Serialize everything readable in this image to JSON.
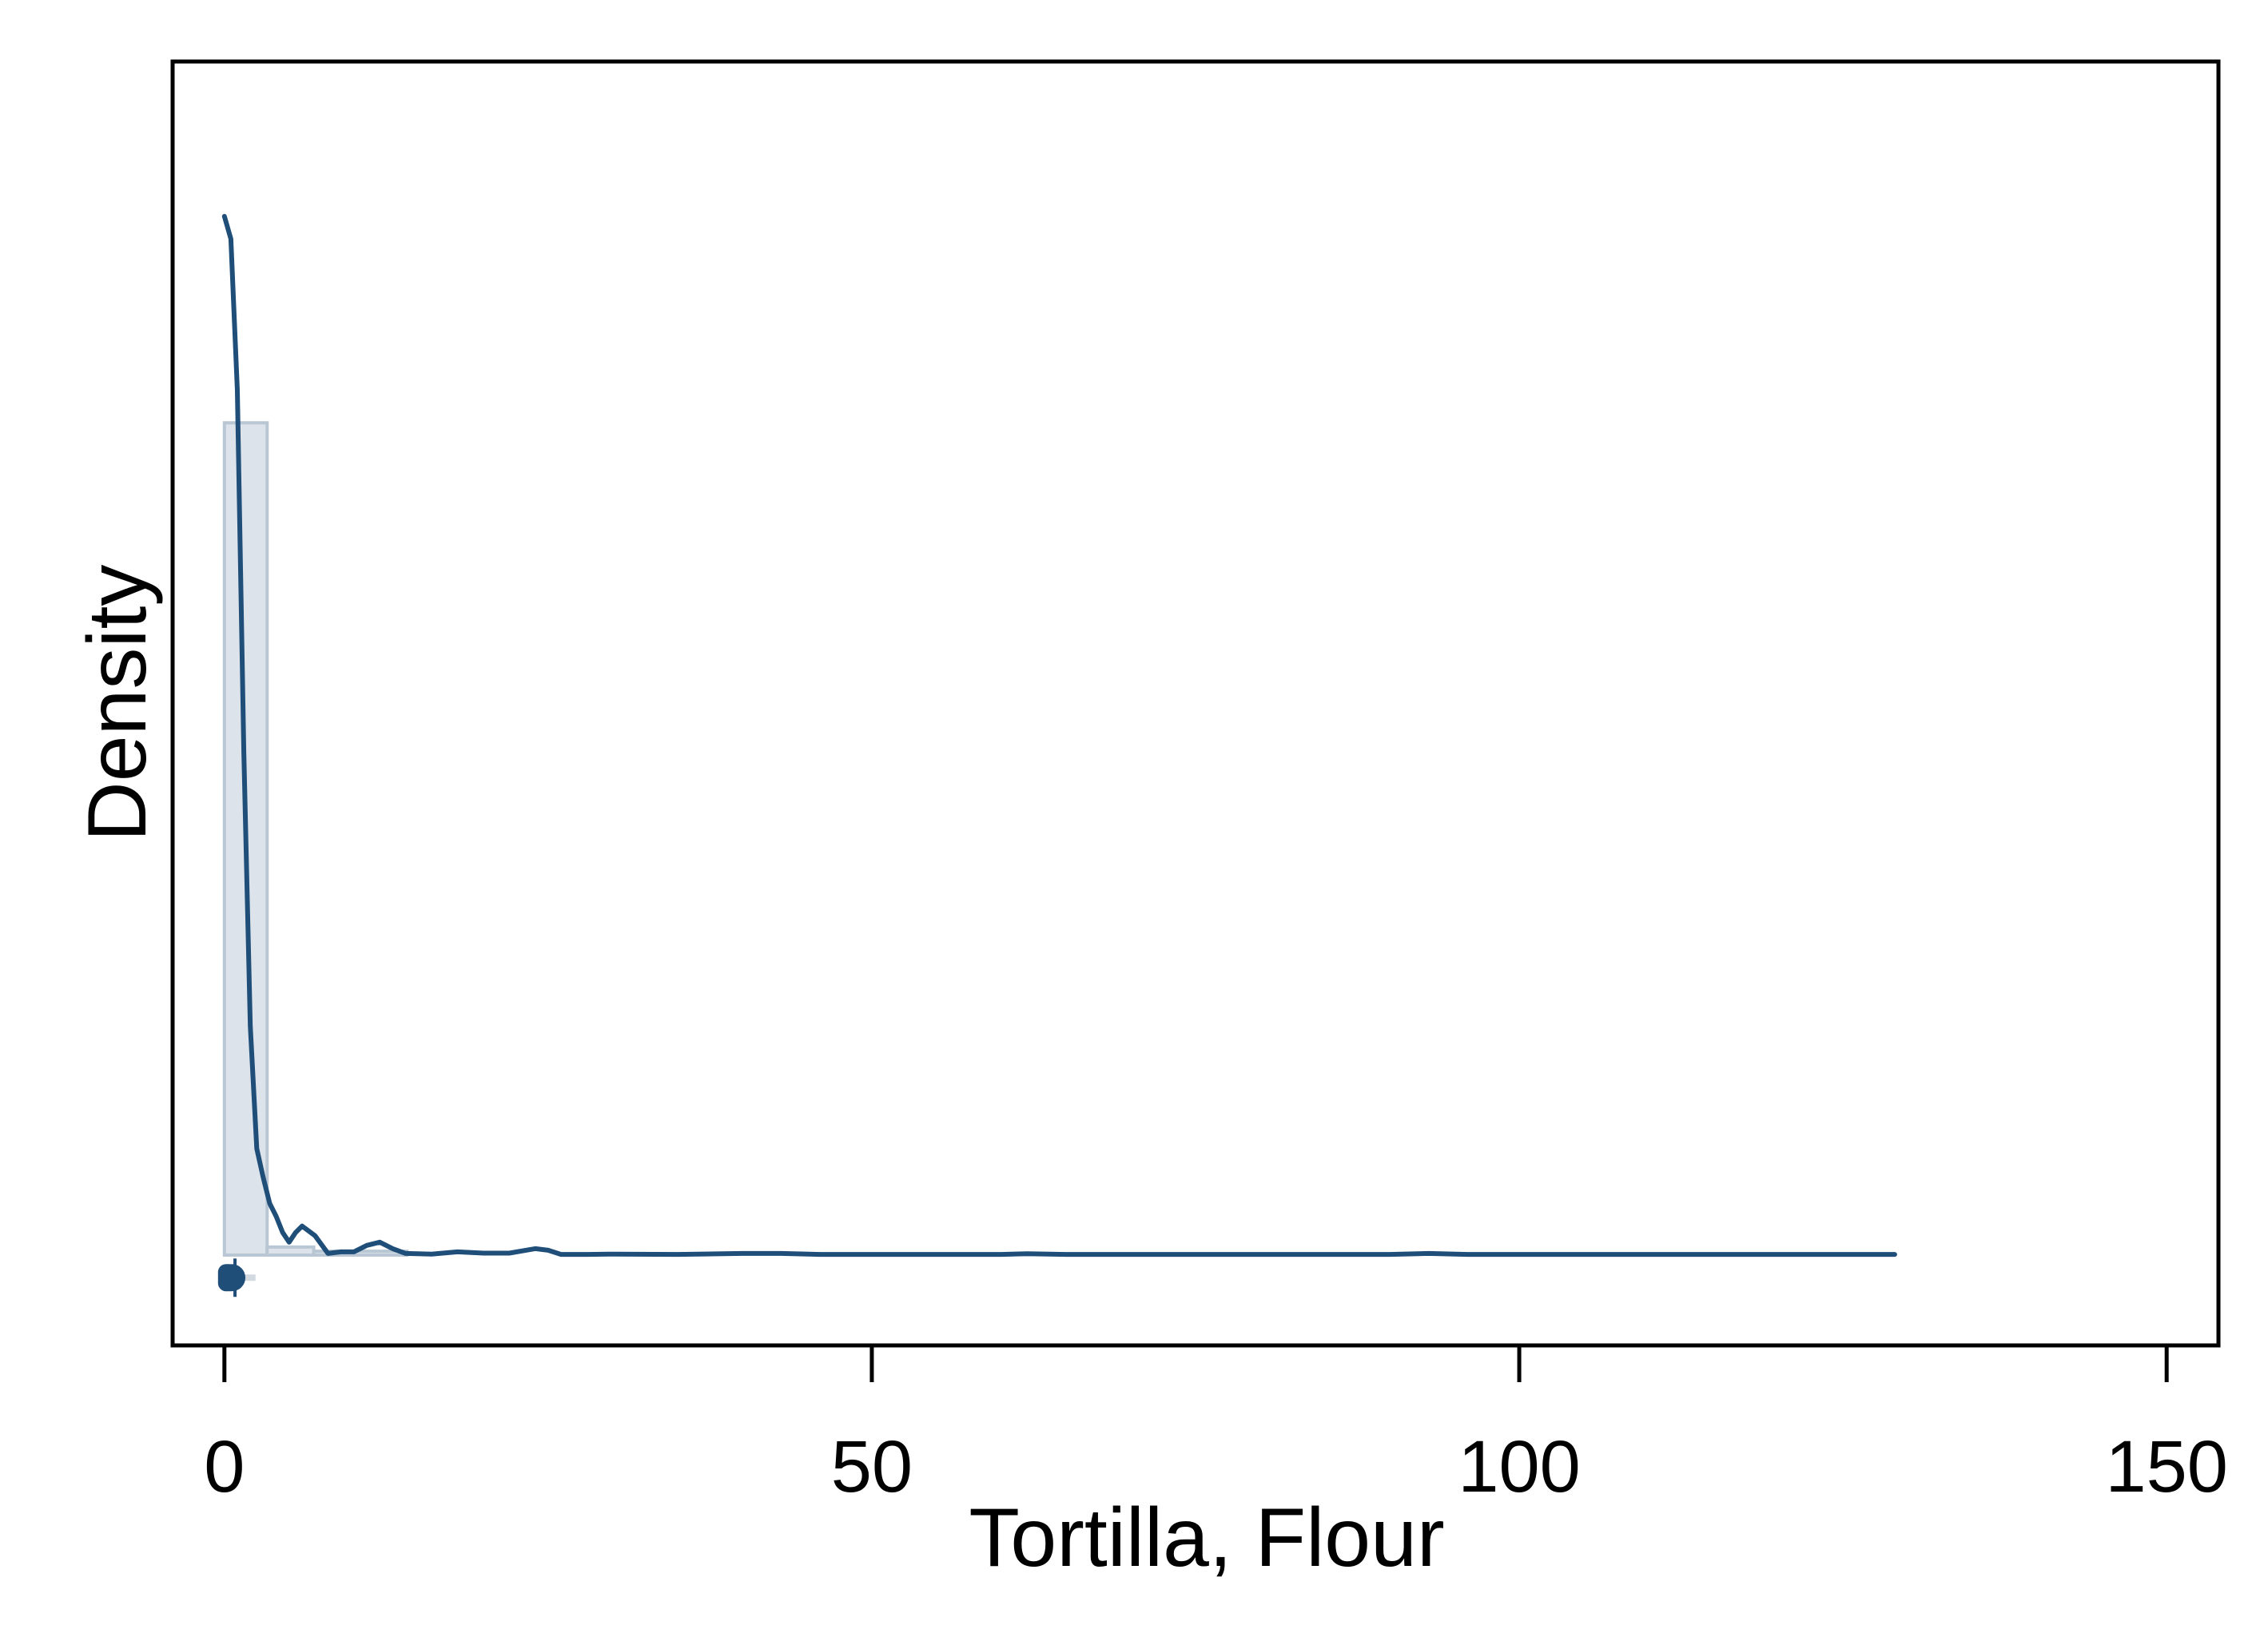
{
  "chart_data": {
    "type": "histogram-density",
    "title": "",
    "xlabel": "Tortilla, Flour",
    "ylabel": "Density",
    "xlim": [
      -4,
      154
    ],
    "ylim": [
      -0.028,
      0.37
    ],
    "x_ticks": [
      0,
      50,
      100,
      150
    ],
    "x_tick_labels": [
      "0",
      "50",
      "100",
      "150"
    ],
    "y_ticks_shown": false,
    "grid": false,
    "colors": {
      "density_line": "#1f4e79",
      "bar_fill": "#dde3ea",
      "bar_edge": "#b9c6d3",
      "boxplot": "#1f4e79"
    },
    "histogram": {
      "bin_edges": [
        0,
        3.3,
        6.9,
        14.1
      ],
      "densities": [
        0.258,
        0.0025,
        0.0012
      ]
    },
    "density_curve": {
      "x": [
        0,
        0.5,
        1,
        1.5,
        2,
        2.5,
        3,
        3.5,
        4,
        4.5,
        5,
        5.5,
        6,
        7,
        8,
        9,
        10,
        11,
        12,
        13,
        14,
        16,
        18,
        20,
        22,
        24,
        25,
        26,
        28,
        30,
        35,
        40,
        43,
        46,
        50,
        60,
        62,
        65,
        80,
        90,
        93,
        96,
        110,
        120,
        129
      ],
      "y": [
        0.322,
        0.315,
        0.268,
        0.156,
        0.071,
        0.033,
        0.024,
        0.016,
        0.012,
        0.007,
        0.004,
        0.007,
        0.009,
        0.006,
        0.0005,
        0.001,
        0.001,
        0.003,
        0.004,
        0.002,
        0.0005,
        0.0003,
        0.001,
        0.0006,
        0.0006,
        0.002,
        0.0015,
        0.0002,
        0.0002,
        0.0003,
        0.0002,
        0.0005,
        0.0005,
        0.0002,
        0.0002,
        0.0002,
        0.0004,
        0.0002,
        0.0002,
        0.0002,
        0.0005,
        0.0002,
        0.0002,
        0.0002,
        0.0002
      ]
    },
    "boxplot": {
      "q1": 0,
      "median": 0.2,
      "q3": 0.5,
      "whisker_high": 2.4,
      "y_value": -0.007
    }
  }
}
